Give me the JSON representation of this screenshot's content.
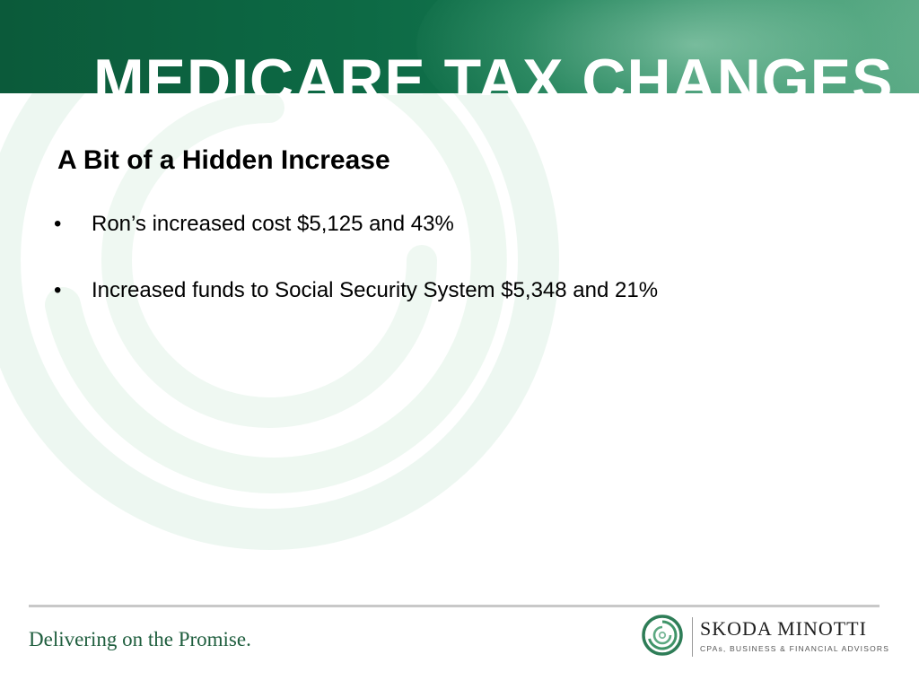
{
  "slide": {
    "title": "MEDICARE TAX CHANGES",
    "subtitle": "A Bit of a Hidden Increase",
    "bullets": [
      {
        "marker": "•",
        "text": "Ron’s increased cost $5,125 and 43%"
      },
      {
        "marker": "•",
        "text": "Increased funds to Social Security System $5,348 and 21%"
      }
    ]
  },
  "footer": {
    "tagline": "Delivering on the Promise.",
    "logo_name": "SKODA MINOTTI",
    "logo_subtitle": "CPAs, BUSINESS & FINANCIAL ADVISORS"
  },
  "colors": {
    "header_green": "#0d6a45",
    "title_text": "#ffffff",
    "tagline_green": "#1f5e3e",
    "swirl_tint": "#e8f5ec"
  },
  "icons": {
    "logo_mark": "concentric-circle-logo-icon",
    "background": "swirl-graphic"
  }
}
